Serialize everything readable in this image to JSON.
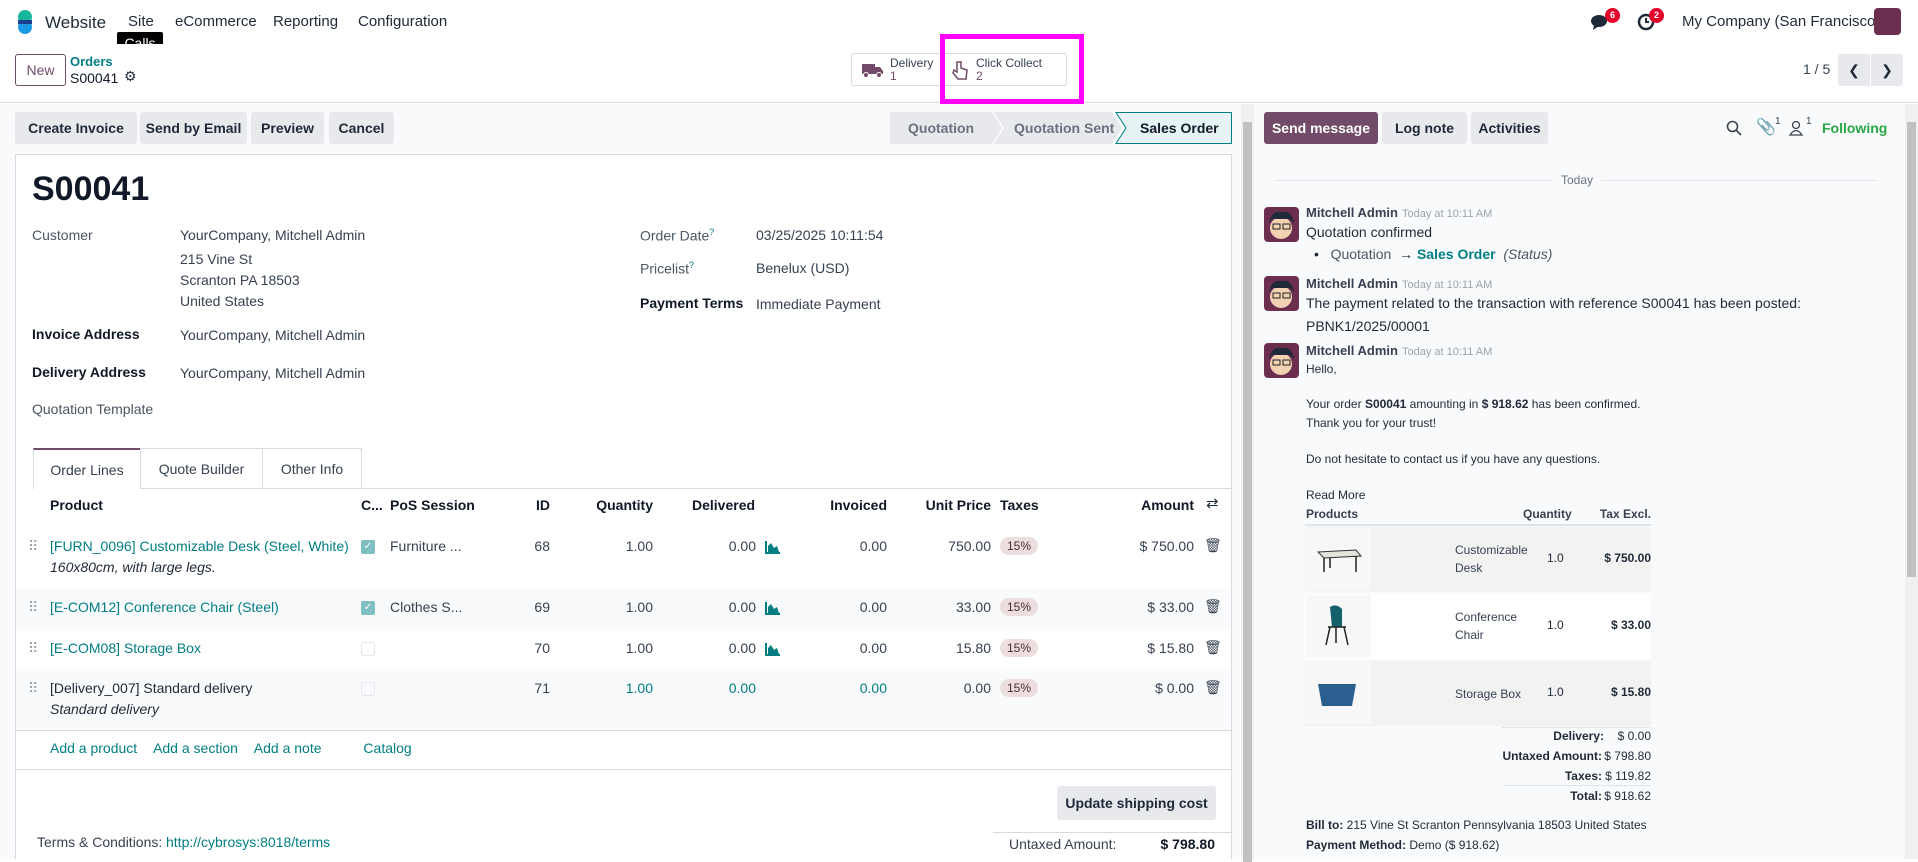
{
  "nav": {
    "app": "Website",
    "menu": [
      "Site",
      "eCommerce",
      "Reporting",
      "Configuration"
    ],
    "tooltip": "Calls",
    "messages_count": "6",
    "activities_count": "2",
    "company": "My Company (San Francisco)"
  },
  "control": {
    "new_label": "New",
    "breadcrumb": "Orders",
    "record": "S00041",
    "smart_buttons": [
      {
        "label": "Delivery",
        "count": "1",
        "icon": "truck-icon"
      },
      {
        "label": "Click Collect",
        "count": "2",
        "icon": "hand-pointer-icon"
      }
    ],
    "highlight_color": "#ff00ff",
    "pager": "1 / 5"
  },
  "actions": [
    "Create Invoice",
    "Send by Email",
    "Preview",
    "Cancel"
  ],
  "status": {
    "steps": [
      "Quotation",
      "Quotation Sent",
      "Sales Order"
    ],
    "active": "Sales Order"
  },
  "form": {
    "title": "S00041",
    "customer_label": "Customer",
    "customer": "YourCompany, Mitchell Admin",
    "address": [
      "215 Vine St",
      "Scranton PA 18503",
      "United States"
    ],
    "invoice_label": "Invoice Address",
    "invoice": "YourCompany, Mitchell Admin",
    "delivery_label": "Delivery Address",
    "delivery": "YourCompany, Mitchell Admin",
    "template_label": "Quotation Template",
    "order_date_label": "Order Date",
    "order_date": "03/25/2025 10:11:54",
    "pricelist_label": "Pricelist",
    "pricelist": "Benelux (USD)",
    "terms_label": "Payment Terms",
    "terms": "Immediate Payment",
    "help": "?"
  },
  "tabs": [
    "Order Lines",
    "Quote Builder",
    "Other Info"
  ],
  "table": {
    "headers": [
      "Product",
      "C...",
      "PoS Session",
      "ID",
      "Quantity",
      "Delivered",
      "Invoiced",
      "Unit Price",
      "Taxes",
      "Amount"
    ],
    "rows": [
      {
        "product": "[FURN_0096] Customizable Desk (Steel, White)",
        "desc": "160x80cm, with large legs.",
        "checked": true,
        "pos": "Furniture ...",
        "id": "68",
        "qty": "1.00",
        "delivered": "0.00",
        "invoiced": "0.00",
        "price": "750.00",
        "tax": "15%",
        "amount": "$ 750.00",
        "link": true
      },
      {
        "product": "[E-COM12] Conference Chair (Steel)",
        "desc": "",
        "checked": true,
        "pos": "Clothes S...",
        "id": "69",
        "qty": "1.00",
        "delivered": "0.00",
        "invoiced": "0.00",
        "price": "33.00",
        "tax": "15%",
        "amount": "$ 33.00",
        "link": true
      },
      {
        "product": "[E-COM08] Storage Box",
        "desc": "",
        "checked": false,
        "pos": "",
        "id": "70",
        "qty": "1.00",
        "delivered": "0.00",
        "invoiced": "0.00",
        "price": "15.80",
        "tax": "15%",
        "amount": "$ 15.80",
        "link": true
      },
      {
        "product": "[Delivery_007] Standard delivery",
        "desc": "Standard delivery",
        "checked": false,
        "pos": "",
        "id": "71",
        "qty": "1.00",
        "delivered": "0.00",
        "invoiced": "0.00",
        "price": "0.00",
        "tax": "15%",
        "amount": "$ 0.00",
        "link": false
      }
    ],
    "add_links": [
      "Add a product",
      "Add a section",
      "Add a note",
      "Catalog"
    ]
  },
  "footer": {
    "update_shipping": "Update shipping cost",
    "terms_label": "Terms & Conditions:",
    "terms_link": "http://cybrosys:8018/terms",
    "untaxed_label": "Untaxed Amount:",
    "untaxed": "$ 798.80"
  },
  "chatter": {
    "send": "Send message",
    "log": "Log note",
    "activities": "Activities",
    "attachments": "1",
    "followers": "1",
    "following": "Following",
    "day": "Today",
    "messages": [
      {
        "author": "Mitchell Admin",
        "time": "Today at 10:11 AM",
        "body": "Quotation confirmed",
        "old": "Quotation",
        "new": "Sales Order",
        "field": "(Status)"
      },
      {
        "author": "Mitchell Admin",
        "time": "Today at 10:11 AM",
        "body": "The payment related to the transaction with reference S00041 has been posted:",
        "link": "PBNK1/2025/00001"
      },
      {
        "author": "Mitchell Admin",
        "time": "Today at 10:11 AM",
        "hello": "Hello,",
        "order_pre": "Your order ",
        "order_ref": "S00041",
        "order_mid": " amounting in ",
        "order_amt": "$ 918.62",
        "order_post": " has been confirmed.",
        "thanks": "Thank you for your trust!",
        "contact": "Do not hesitate to contact us if you have any questions.",
        "read_more": "Read More"
      }
    ],
    "email_table": {
      "headers": [
        "Products",
        "Quantity",
        "Tax Excl."
      ],
      "rows": [
        [
          "Customizable Desk",
          "1.0",
          "$ 750.00"
        ],
        [
          "Conference Chair",
          "1.0",
          "$ 33.00"
        ],
        [
          "Storage Box",
          "1.0",
          "$ 15.80"
        ]
      ],
      "totals": [
        [
          "Delivery:",
          "$ 0.00"
        ],
        [
          "Untaxed Amount:",
          "$ 798.80"
        ],
        [
          "Taxes:",
          "$ 119.82"
        ],
        [
          "Total:",
          "$ 918.62"
        ]
      ],
      "bill_label": "Bill to:",
      "bill": "215 Vine St Scranton Pennsylvania 18503 United States",
      "pay_label": "Payment Method:",
      "pay": "Demo ($ 918.62)"
    }
  }
}
